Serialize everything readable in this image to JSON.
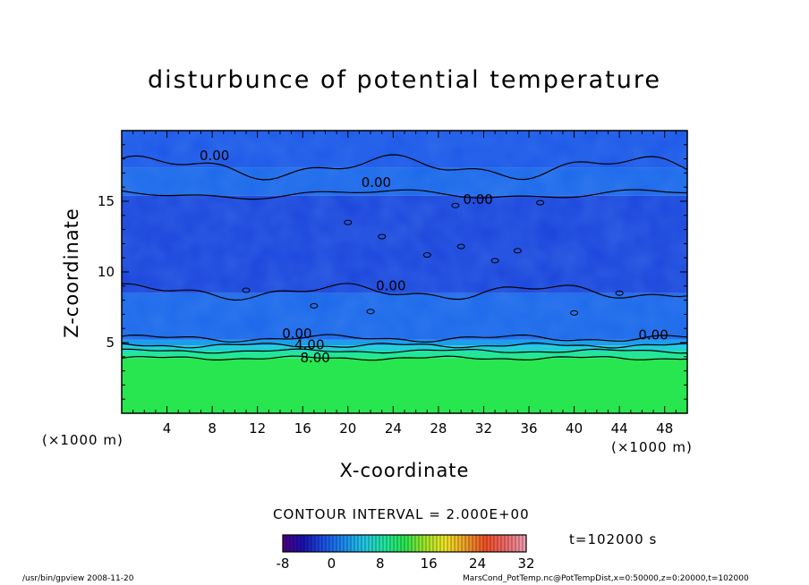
{
  "chart_data": {
    "type": "heatmap",
    "title": "disturbunce of potential temperature",
    "xlabel": "X-coordinate",
    "ylabel": "Z-coordinate",
    "x_unit_left": "(×1000 m)",
    "x_unit_right": "(×1000 m)",
    "xlim": [
      0,
      50
    ],
    "ylim": [
      0,
      20
    ],
    "xticks": [
      4,
      8,
      12,
      16,
      20,
      24,
      28,
      32,
      36,
      40,
      44,
      48
    ],
    "yticks": [
      5,
      10,
      15
    ],
    "grid": false,
    "contour_interval": "CONTOUR INTERVAL = 2.000E+00",
    "contour_labels": [
      {
        "text": "0.00",
        "x": 8.2,
        "z": 18.2
      },
      {
        "text": "0.00",
        "x": 22.5,
        "z": 16.3
      },
      {
        "text": "0.00",
        "x": 31.5,
        "z": 15.1
      },
      {
        "text": "0.00",
        "x": 23.8,
        "z": 9.0
      },
      {
        "text": "0.00",
        "x": 15.5,
        "z": 5.6
      },
      {
        "text": "0.00",
        "x": 47.0,
        "z": 5.5
      },
      {
        "text": "4.00",
        "x": 16.6,
        "z": 4.8
      },
      {
        "text": "8.00",
        "x": 17.1,
        "z": 3.9
      }
    ],
    "field_bands": [
      {
        "z_from": 0,
        "z_to": 3.9,
        "value": 12
      },
      {
        "z_from": 3.9,
        "z_to": 4.4,
        "value": 9
      },
      {
        "z_from": 4.4,
        "z_to": 4.8,
        "value": 6
      },
      {
        "z_from": 4.8,
        "z_to": 5.2,
        "value": 3
      },
      {
        "z_from": 5.2,
        "z_to": 8.5,
        "value": 0
      },
      {
        "z_from": 8.5,
        "z_to": 15.4,
        "value": -2
      },
      {
        "z_from": 15.4,
        "z_to": 17.4,
        "value": 0
      },
      {
        "z_from": 17.4,
        "z_to": 20,
        "value": -1
      }
    ],
    "colorbar": {
      "min": -8,
      "max": 32,
      "ticks": [
        "-8",
        "0",
        "8",
        "16",
        "24",
        "32"
      ],
      "colors": [
        "#4b0082",
        "#1a10b0",
        "#1a50e6",
        "#1a8cf0",
        "#22c8e6",
        "#22e6a0",
        "#28e650",
        "#a0e628",
        "#f0e628",
        "#f0a028",
        "#f05028",
        "#f06a6a",
        "#f0a0b4"
      ]
    },
    "time": "t=102000 s"
  },
  "footer": {
    "left": "/usr/bin/gpview  2008-11-20",
    "right": "MarsCond_PotTemp.nc@PotTempDist,x=0:50000,z=0:20000,t=102000"
  }
}
